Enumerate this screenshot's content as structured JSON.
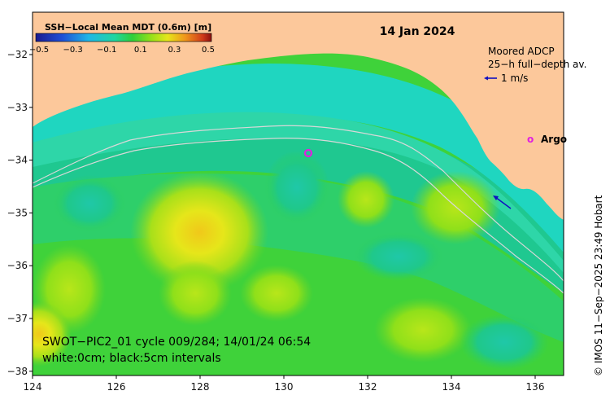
{
  "map": {
    "title": "14 Jan 2024",
    "colorbar": {
      "title": "SSH−Local Mean MDT (0.6m) [m]",
      "ticks": [
        "−0.5",
        "−0.3",
        "−0.1",
        "0.1",
        "0.3",
        "0.5"
      ],
      "colors": [
        "#1a1a8f",
        "#1f4fd6",
        "#1fa0e6",
        "#1fd0c8",
        "#1fd28a",
        "#2ecf3a",
        "#8fe01a",
        "#e0e01a",
        "#f0a01a",
        "#e05a1a",
        "#a01a1a"
      ]
    },
    "x_ticks": [
      "124",
      "126",
      "128",
      "130",
      "132",
      "134",
      "136"
    ],
    "y_ticks": [
      "−32",
      "−33",
      "−34",
      "−35",
      "−36",
      "−37",
      "−38"
    ],
    "adcp_legend": {
      "line1": "Moored ADCP",
      "line2": "25−h full−depth av.",
      "scale": "1 m/s"
    },
    "argo_label": "Argo",
    "caption_line1": "SWOT−PIC2_01 cycle 009/284; 14/01/24 06:54",
    "caption_line2": "white:0cm; black:5cm intervals",
    "credit": "© IMOS 11−Sep−2025 23:49 Hobart",
    "land_color": "#fcc89b",
    "ocean_base": "#2ecf3a"
  }
}
